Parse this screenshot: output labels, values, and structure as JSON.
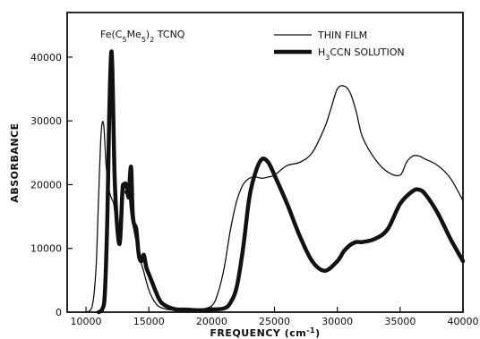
{
  "chart_data": {
    "type": "line",
    "title": "",
    "annotation": {
      "prefix": "Fe(C",
      "sub1": "5",
      "mid": "Me",
      "sub2": "5",
      "close": ")",
      "sub3": "2",
      "suffix": " TCNQ"
    },
    "xlabel": "FREQUENCY (cm",
    "xlabel_sup": "-1",
    "xlabel_close": ")",
    "ylabel": "ABSORBANCE",
    "xlim": [
      8500,
      40000
    ],
    "ylim": [
      0,
      47000
    ],
    "x_ticks": [
      10000,
      15000,
      20000,
      25000,
      30000,
      35000,
      40000
    ],
    "x_tick_labels": [
      "10000",
      "15000",
      "20000",
      "25000",
      "30000",
      "35000",
      "40000"
    ],
    "y_ticks": [
      0,
      10000,
      20000,
      30000,
      40000
    ],
    "y_tick_labels": [
      "0",
      "10000",
      "20000",
      "30000",
      "40000"
    ],
    "grid": false,
    "legend_position": "top-right",
    "series": [
      {
        "name": "THIN FILM",
        "style": "thin",
        "x": [
          10000,
          10500,
          10800,
          11000,
          11200,
          11400,
          11600,
          11800,
          12000,
          12200,
          12400,
          12600,
          12800,
          13000,
          13200,
          13400,
          13600,
          13800,
          14000,
          14200,
          14500,
          15000,
          15500,
          16000,
          17000,
          18000,
          19000,
          20000,
          20500,
          21000,
          21500,
          22000,
          22500,
          23000,
          23500,
          24000,
          24500,
          25000,
          26000,
          27000,
          28000,
          29000,
          29500,
          30000,
          30500,
          31000,
          31500,
          32000,
          33000,
          34000,
          35000,
          35500,
          36000,
          36500,
          37000,
          38000,
          39000,
          40000
        ],
        "y": [
          0,
          1000,
          7000,
          18000,
          28000,
          29500,
          23000,
          19500,
          18000,
          17000,
          14000,
          12000,
          17500,
          19000,
          18500,
          18500,
          15000,
          13000,
          11000,
          9000,
          7000,
          3500,
          1500,
          700,
          300,
          300,
          400,
          1000,
          3000,
          7000,
          13000,
          17500,
          20000,
          21000,
          21200,
          21000,
          21200,
          21500,
          23000,
          23500,
          25000,
          29000,
          32000,
          35000,
          35500,
          34500,
          31500,
          27500,
          24000,
          22000,
          21500,
          23500,
          24500,
          24500,
          24000,
          23000,
          21000,
          17500
        ]
      },
      {
        "name": "H3CCN SOLUTION",
        "legend_parts": {
          "pre": "H",
          "sub": "3",
          "post": "CCN SOLUTION"
        },
        "style": "thick",
        "x": [
          11000,
          11300,
          11500,
          11700,
          11850,
          12000,
          12100,
          12200,
          12300,
          12500,
          12700,
          12900,
          13000,
          13200,
          13400,
          13500,
          13600,
          13700,
          13800,
          14000,
          14200,
          14400,
          14600,
          14800,
          15000,
          15200,
          15500,
          16000,
          17000,
          18000,
          19000,
          20000,
          21000,
          21500,
          22000,
          22500,
          23000,
          23500,
          24000,
          24500,
          25000,
          26000,
          27000,
          28000,
          29000,
          30000,
          30500,
          31000,
          31500,
          32000,
          33000,
          34000,
          35000,
          36000,
          36500,
          37000,
          38000,
          39000,
          40000
        ],
        "y": [
          0,
          500,
          3000,
          15000,
          31000,
          40500,
          38000,
          28000,
          20000,
          13000,
          11000,
          19000,
          20000,
          20000,
          18000,
          21500,
          22500,
          16000,
          14000,
          13000,
          9000,
          8000,
          9000,
          7000,
          6000,
          5000,
          3500,
          1500,
          500,
          400,
          300,
          400,
          600,
          1500,
          4000,
          10000,
          18000,
          22000,
          24000,
          23500,
          21500,
          17000,
          12000,
          8000,
          6500,
          8000,
          9500,
          10500,
          11000,
          11000,
          11500,
          13000,
          17000,
          19000,
          19200,
          18500,
          15500,
          11500,
          8000
        ]
      }
    ]
  }
}
